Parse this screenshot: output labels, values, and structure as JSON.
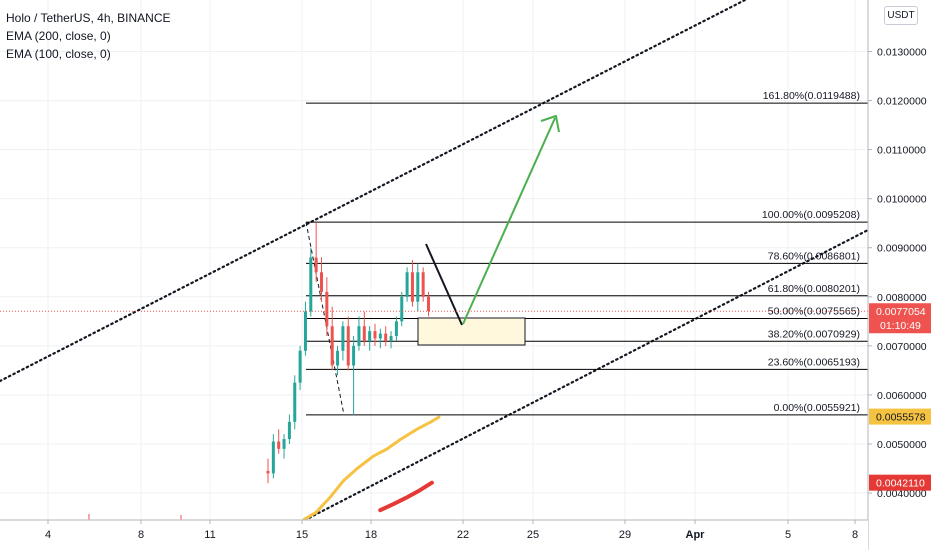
{
  "legend": {
    "title": "Holo / TetherUS, 4h, BINANCE",
    "ema200": "EMA (200, close, 0)",
    "ema100": "EMA (100, close, 0)"
  },
  "currency_button": "USDT",
  "colors": {
    "bull": "#26a69a",
    "bear": "#ef5350",
    "ema_orange": "#f5c242",
    "ema_red": "#e53935",
    "arrow_green": "#4caf50",
    "fib_line": "#000000",
    "price_red": "#ef5350"
  },
  "chart_data": {
    "type": "candlestick",
    "symbol": "Holo / TetherUS",
    "interval": "4h",
    "exchange": "BINANCE",
    "x_tick_labels": [
      "4",
      "8",
      "11",
      "15",
      "18",
      "22",
      "25",
      "29",
      "Apr",
      "5",
      "8"
    ],
    "y_tick_labels": [
      "0.0130000",
      "0.0120000",
      "0.0110000",
      "0.0100000",
      "0.0090000",
      "0.0080000",
      "0.0070000",
      "0.0060000",
      "0.0050000",
      "0.0040000"
    ],
    "ylim": [
      0.00345,
      0.01405
    ],
    "fib_levels": [
      {
        "label": "161.80%(0.0119488)",
        "value": 0.0119488
      },
      {
        "label": "100.00%(0.0095208)",
        "value": 0.0095208
      },
      {
        "label": "78.60%(0.0086801)",
        "value": 0.0086801
      },
      {
        "label": "61.80%(0.0080201)",
        "value": 0.0080201
      },
      {
        "label": "50.00%(0.0075565)",
        "value": 0.0075565
      },
      {
        "label": "38.20%(0.0070929)",
        "value": 0.0070929
      },
      {
        "label": "23.60%(0.0065193)",
        "value": 0.0065193
      },
      {
        "label": "0.00%(0.0055921)",
        "value": 0.0055921
      }
    ],
    "price_tags": [
      {
        "label": "0.0077054",
        "sub": "01:10:49",
        "value": 0.0077054,
        "color": "#ef5350",
        "text_color": "#ffffff"
      },
      {
        "label": "0.0055578",
        "value": 0.0055578,
        "color": "#f5c242",
        "text_color": "#131722"
      },
      {
        "label": "0.0042110",
        "value": 0.004211,
        "color": "#e53935",
        "text_color": "#ffffff"
      }
    ],
    "candles": [
      [
        0.00445,
        0.0047,
        0.0042,
        0.0044
      ],
      [
        0.0044,
        0.0052,
        0.0043,
        0.00505
      ],
      [
        0.00505,
        0.0053,
        0.0048,
        0.0049
      ],
      [
        0.0049,
        0.0052,
        0.0047,
        0.0051
      ],
      [
        0.0051,
        0.0056,
        0.005,
        0.00545
      ],
      [
        0.00545,
        0.0064,
        0.0053,
        0.00625
      ],
      [
        0.00625,
        0.007,
        0.0061,
        0.0069
      ],
      [
        0.0069,
        0.0079,
        0.0068,
        0.0077
      ],
      [
        0.0077,
        0.009,
        0.0076,
        0.0088
      ],
      [
        0.0088,
        0.00952,
        0.0083,
        0.0085
      ],
      [
        0.0085,
        0.0088,
        0.0079,
        0.0081
      ],
      [
        0.0081,
        0.0084,
        0.0072,
        0.0074
      ],
      [
        0.0074,
        0.0078,
        0.0065,
        0.0066
      ],
      [
        0.0066,
        0.007,
        0.0064,
        0.0069
      ],
      [
        0.0069,
        0.0075,
        0.0067,
        0.0074
      ],
      [
        0.0074,
        0.0076,
        0.0065,
        0.0066
      ],
      [
        0.0066,
        0.0072,
        0.00559,
        0.007
      ],
      [
        0.007,
        0.0076,
        0.0069,
        0.0074
      ],
      [
        0.0074,
        0.0077,
        0.007,
        0.0071
      ],
      [
        0.0071,
        0.0074,
        0.0069,
        0.0073
      ],
      [
        0.0073,
        0.00745,
        0.007,
        0.00715
      ],
      [
        0.00715,
        0.00735,
        0.00695,
        0.00725
      ],
      [
        0.00725,
        0.0074,
        0.007,
        0.0071
      ],
      [
        0.0071,
        0.0073,
        0.00695,
        0.0072
      ],
      [
        0.0072,
        0.0076,
        0.0071,
        0.0075
      ],
      [
        0.0075,
        0.0081,
        0.0074,
        0.008
      ],
      [
        0.008,
        0.0086,
        0.0079,
        0.0085
      ],
      [
        0.0085,
        0.00875,
        0.0078,
        0.0079
      ],
      [
        0.0079,
        0.00868,
        0.0077,
        0.0085
      ],
      [
        0.0085,
        0.0086,
        0.0079,
        0.008
      ],
      [
        0.008,
        0.0081,
        0.0076,
        0.00771
      ]
    ],
    "ema200": [
      [
        15.05,
        0.00345
      ],
      [
        15.6,
        0.0036
      ],
      [
        16.2,
        0.0039
      ],
      [
        16.8,
        0.00425
      ],
      [
        17.4,
        0.0045
      ],
      [
        18.1,
        0.00475
      ],
      [
        18.7,
        0.0049
      ],
      [
        19.3,
        0.0051
      ],
      [
        20.0,
        0.0053
      ],
      [
        20.6,
        0.00545
      ],
      [
        21.0,
        0.00556
      ]
    ],
    "ema100": [
      [
        18.4,
        0.00365
      ],
      [
        19.0,
        0.00378
      ],
      [
        19.6,
        0.00392
      ],
      [
        20.1,
        0.00405
      ],
      [
        20.65,
        0.00421
      ]
    ]
  }
}
